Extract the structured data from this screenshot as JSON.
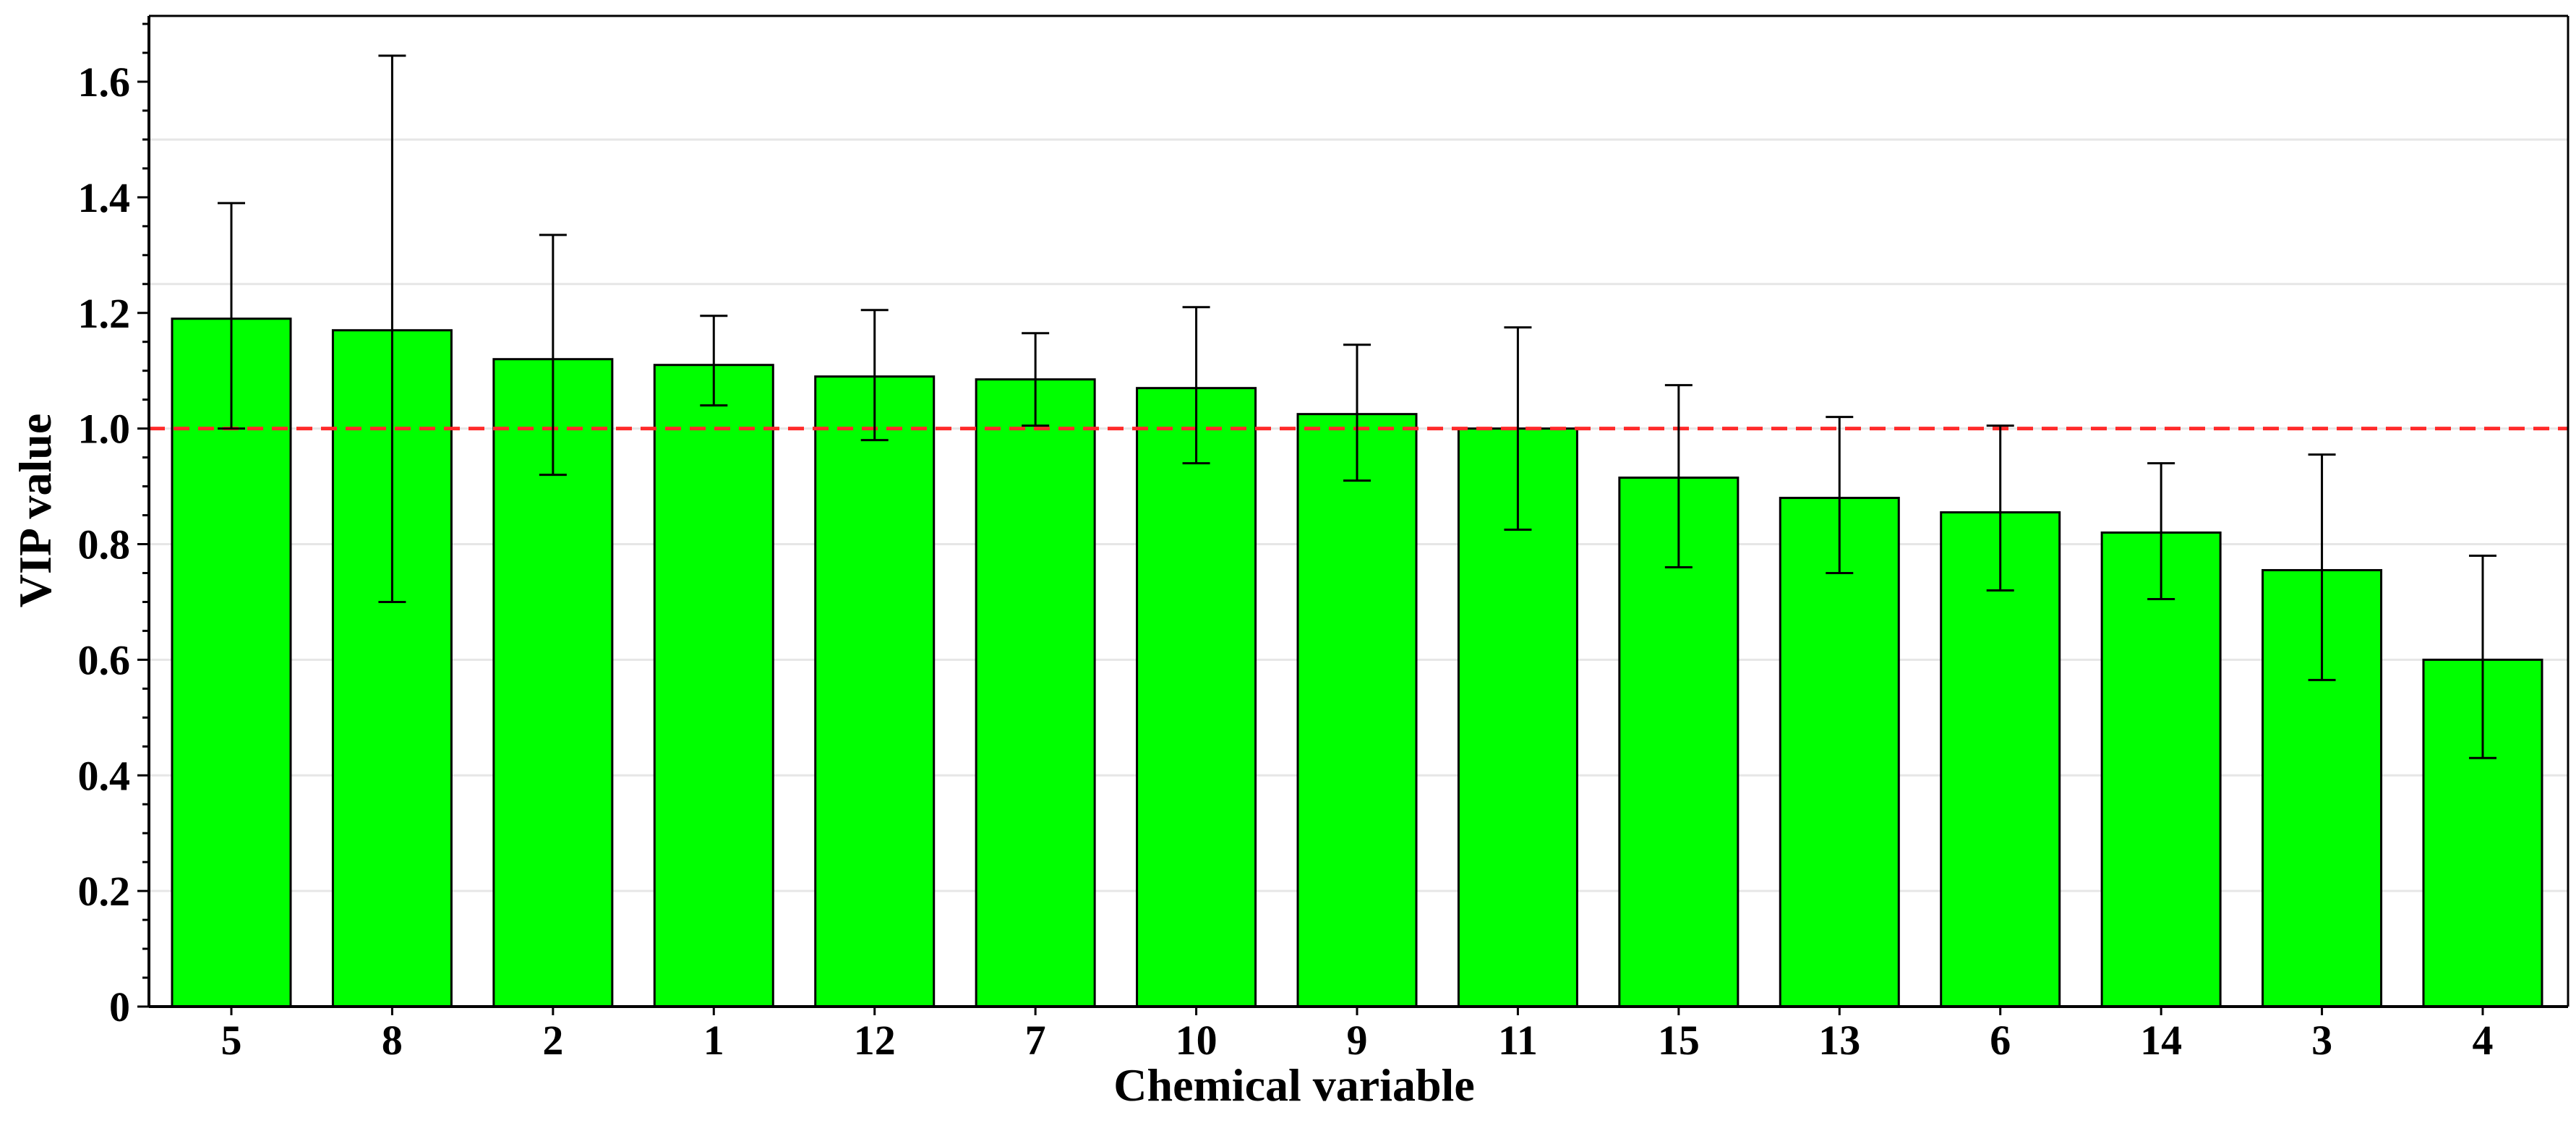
{
  "chart_data": {
    "type": "bar",
    "title": "",
    "xlabel": "Chemical variable",
    "ylabel": "VIP value",
    "categories": [
      "5",
      "8",
      "2",
      "1",
      "12",
      "7",
      "10",
      "9",
      "11",
      "15",
      "13",
      "6",
      "14",
      "3",
      "4"
    ],
    "values": [
      1.19,
      1.17,
      1.12,
      1.11,
      1.09,
      1.085,
      1.07,
      1.025,
      1.0,
      0.915,
      0.88,
      0.855,
      0.82,
      0.755,
      0.6
    ],
    "error_low": [
      1.0,
      0.7,
      0.92,
      1.04,
      0.98,
      1.005,
      0.94,
      0.91,
      0.825,
      0.76,
      0.75,
      0.72,
      0.705,
      0.565,
      0.43
    ],
    "error_high": [
      1.39,
      1.645,
      1.335,
      1.195,
      1.205,
      1.165,
      1.21,
      1.145,
      1.175,
      1.075,
      1.02,
      1.005,
      0.94,
      0.955,
      0.78
    ],
    "ylim": [
      0,
      1.7
    ],
    "yticks": [
      "0",
      "0.2",
      "0.4",
      "0.6",
      "0.8",
      "1.0",
      "1.2",
      "1.4",
      "1.6"
    ],
    "ytick_values": [
      0,
      0.2,
      0.4,
      0.6,
      0.8,
      1.0,
      1.2,
      1.4,
      1.6
    ],
    "gridlines": [
      0.2,
      0.4,
      0.6,
      0.8,
      1.0,
      1.25,
      1.5
    ],
    "threshold": 1.0,
    "colors": {
      "bar": "#00ff00",
      "bar_edge": "#000000",
      "threshold": "#ff2a2a",
      "grid": "#e6e6e6",
      "axis": "#000000"
    }
  }
}
